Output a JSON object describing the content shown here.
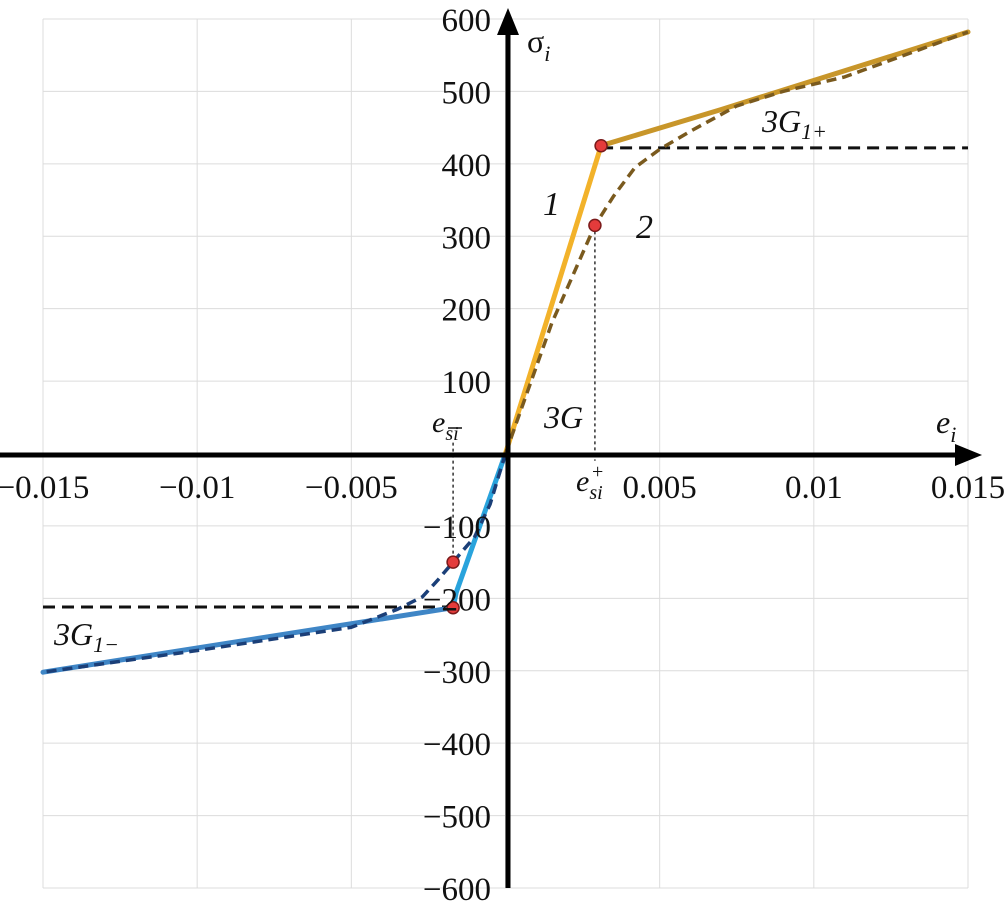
{
  "chart_data": {
    "type": "line",
    "title": "",
    "xlabel": "e",
    "xlabel_subscript": "i",
    "ylabel": "σ",
    "ylabel_subscript": "i",
    "xlim": [
      -0.015,
      0.015
    ],
    "ylim": [
      -600,
      600
    ],
    "x_ticks": [
      -0.015,
      -0.01,
      -0.005,
      0.005,
      0.01,
      0.015
    ],
    "x_tick_labels": [
      "−0.015",
      "−0.01",
      "−0.005",
      "0.005",
      "0.01",
      "0.015"
    ],
    "y_ticks": [
      600,
      500,
      400,
      300,
      200,
      100,
      -100,
      -200,
      -300,
      -400,
      -500,
      -600
    ],
    "y_tick_labels": [
      "600",
      "500",
      "400",
      "300",
      "200",
      "100",
      "−100",
      "−200",
      "−300",
      "−400",
      "−500",
      "−600"
    ],
    "grid": true,
    "colors": {
      "tension": "#f2b22a",
      "tension_hardening": "#c8962a",
      "compression": "#29a3dc",
      "compression_hardening": "#3f86c6",
      "curve2_tension": "#7a5a1e",
      "curve2_compression": "#1b3f78",
      "marker": "#e43b3b",
      "dashed": "#111111"
    },
    "series": [
      {
        "name": "1",
        "style": "solid",
        "segments": [
          {
            "part": "compression-hardening",
            "x": [
              -0.015,
              -0.0017
            ],
            "y": [
              -302,
              -213
            ]
          },
          {
            "part": "compression-elastic",
            "x": [
              -0.0017,
              -0.0016,
              0.0
            ],
            "y": [
              -213,
              -192,
              0
            ]
          },
          {
            "part": "tension-elastic",
            "x": [
              0.0,
              0.0031
            ],
            "y": [
              0,
              425
            ]
          },
          {
            "part": "tension-hardening",
            "x": [
              0.0031,
              0.007,
              0.015
            ],
            "y": [
              425,
              475,
              582
            ]
          }
        ]
      },
      {
        "name": "2",
        "style": "dashed",
        "segments": [
          {
            "part": "tension",
            "x": [
              0.0,
              0.0015,
              0.0029,
              0.0035,
              0.0042,
              0.005,
              0.006,
              0.0075,
              0.009,
              0.011,
              0.015
            ],
            "y": [
              0,
              180,
              315,
              355,
              395,
              420,
              445,
              480,
              500,
              520,
              582
            ]
          },
          {
            "part": "compression",
            "x": [
              0.0,
              -0.0005,
              -0.001,
              -0.0017,
              -0.0022,
              -0.0027,
              -0.0035,
              -0.005,
              -0.01,
              -0.015
            ],
            "y": [
              0,
              -70,
              -115,
              -150,
              -175,
              -198,
              -215,
              -240,
              -272,
              -302
            ]
          }
        ]
      }
    ],
    "reference_lines": [
      {
        "type": "horizontal",
        "y": 422,
        "x_from": 0.0031,
        "x_to": 0.015,
        "style": "dashed"
      },
      {
        "type": "horizontal",
        "y": -212,
        "x_from": -0.015,
        "x_to": -0.0017,
        "style": "dashed"
      },
      {
        "type": "vertical",
        "x": 0.0029,
        "y_from": 315,
        "y_to": -10,
        "style": "dotted"
      },
      {
        "type": "vertical",
        "x": -0.0017,
        "y_from": 15,
        "y_to": -150,
        "style": "dotted"
      }
    ],
    "markers": [
      {
        "x": 0.0031,
        "y": 425
      },
      {
        "x": 0.0029,
        "y": 315
      },
      {
        "x": -0.0017,
        "y": -150
      },
      {
        "x": -0.0017,
        "y": -213
      }
    ],
    "annotations": {
      "curve1": "1",
      "curve2": "2",
      "slope_elastic": "3G",
      "slope_tension_main": "3G",
      "slope_tension_sub": "1+",
      "slope_compression_main": "3G",
      "slope_compression_sub": "1−",
      "strain_plus_base": "e",
      "strain_plus_sub": "si",
      "strain_plus_sup": "+",
      "strain_minus_base": "e",
      "strain_minus_sub": "si"
    }
  }
}
